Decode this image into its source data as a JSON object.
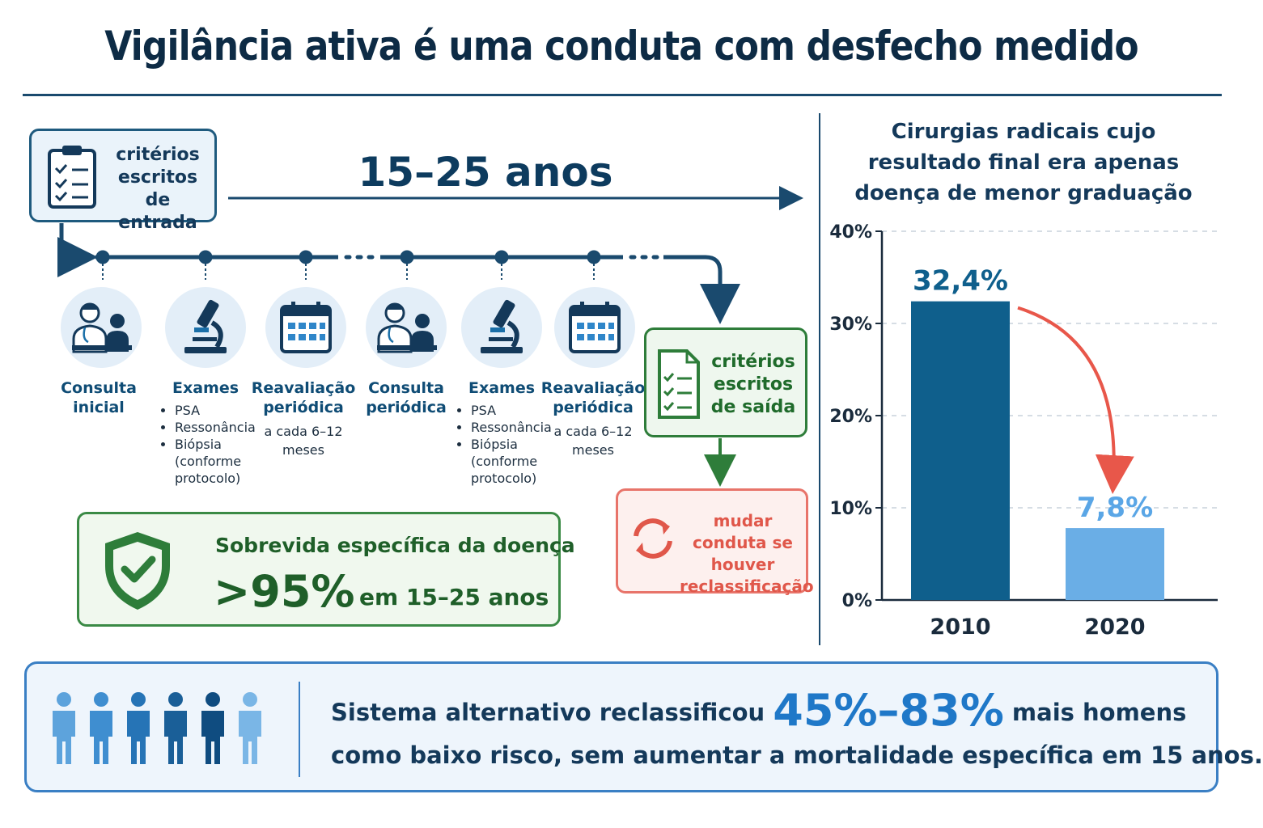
{
  "header": {
    "title": "Vigilância ativa é uma conduta com desfecho medido"
  },
  "timeline": {
    "entry_label": "critérios escritos de entrada",
    "duration_label": "15–25 anos",
    "steps": [
      {
        "label": "Consulta inicial",
        "icon": "doctor-patient-icon"
      },
      {
        "label": "Exames",
        "icon": "microscope-icon",
        "items": [
          "PSA",
          "Ressonância",
          "Biópsia (conforme protocolo)"
        ]
      },
      {
        "label": "Reavaliação periódica",
        "icon": "calendar-icon",
        "sub": "a cada 6–12 meses"
      },
      {
        "label": "Consulta periódica",
        "icon": "doctor-patient-icon"
      },
      {
        "label": "Exames",
        "icon": "microscope-icon",
        "items": [
          "PSA",
          "Ressonância",
          "Biópsia (conforme protocolo)"
        ]
      },
      {
        "label": "Reavaliação periódica",
        "icon": "calendar-icon",
        "sub": "a cada 6–12 meses"
      }
    ],
    "exit_label": "critérios escritos de saída",
    "change_label": "mudar conduta se houver reclassificação"
  },
  "survival": {
    "title": "Sobrevida específica da doença",
    "value": ">95%",
    "period": "em 15–25 anos",
    "icon": "shield-check-icon"
  },
  "chart_data": {
    "type": "bar",
    "title": "Cirurgias radicais cujo resultado final era apenas doença de menor graduação",
    "categories": [
      "2010",
      "2020"
    ],
    "values": [
      32.4,
      7.8
    ],
    "value_labels": [
      "32,4%",
      "7,8%"
    ],
    "colors": [
      "#0f5f8c",
      "#6aaee6"
    ],
    "ylim": [
      0,
      40
    ],
    "yticks": [
      0,
      10,
      20,
      30,
      40
    ],
    "ytick_labels": [
      "0%",
      "10%",
      "20%",
      "30%",
      "40%"
    ],
    "grid": true,
    "xlabel": "",
    "ylabel": ""
  },
  "bottom": {
    "line1_pre": "Sistema alternativo reclassificou",
    "highlight": "45%–83%",
    "line1_post": "mais homens",
    "line2": "como baixo risco, sem aumentar a mortalidade específica em 15 anos.",
    "icon": "people-group-icon"
  },
  "colors": {
    "navy": "#0d2b45",
    "green": "#2e7d3a",
    "red": "#e8746a",
    "blue": "#3a7fc4"
  }
}
